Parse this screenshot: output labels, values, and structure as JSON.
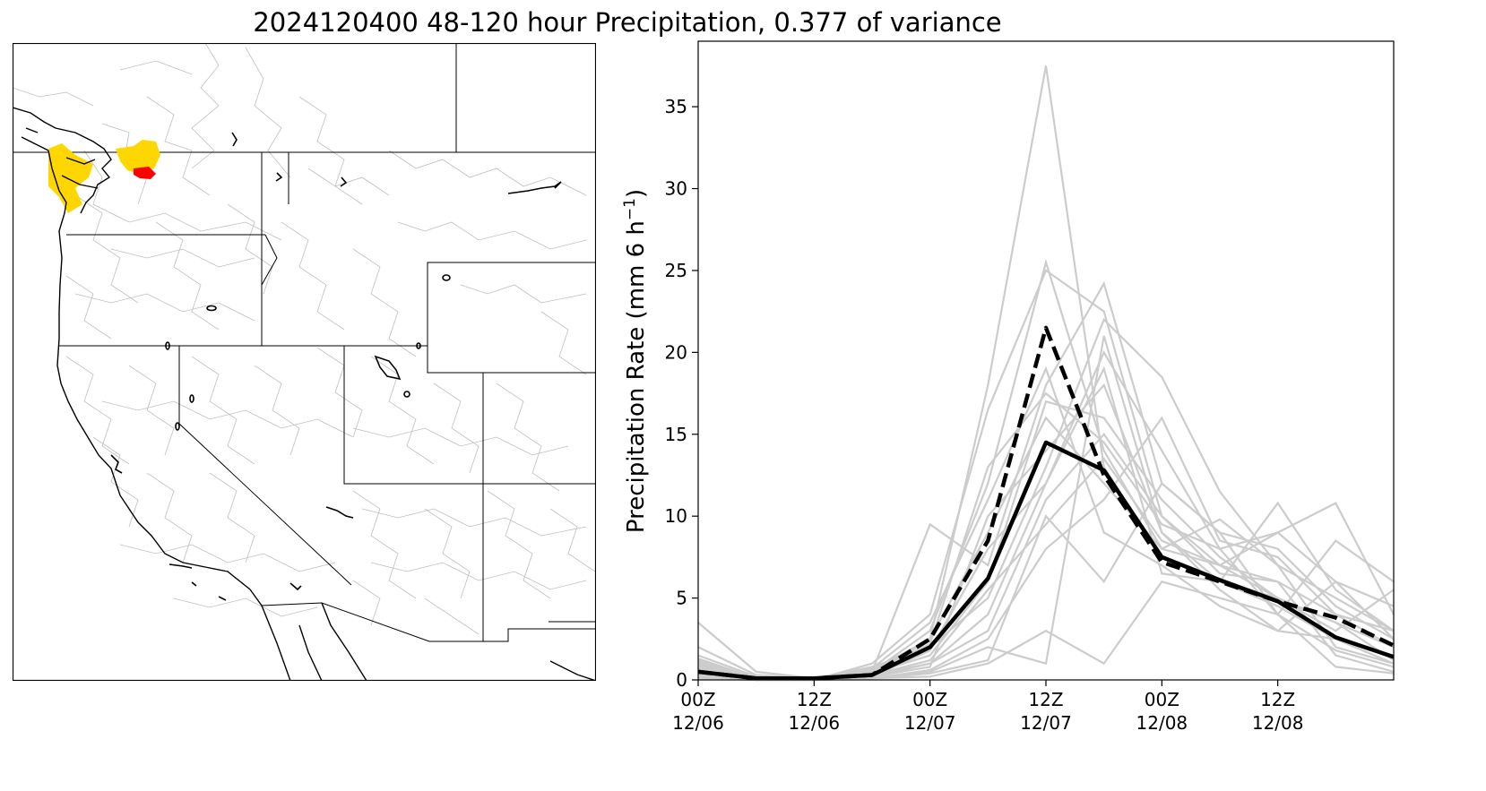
{
  "title": "2024120400 48-120 hour Precipitation, 0.377 of variance",
  "colors": {
    "highlight_yellow": "#ffd700",
    "highlight_red": "#ff0000",
    "member_gray": "#cccccc",
    "basin_gray": "#bfbfbf",
    "mean_black": "#000000"
  },
  "chart_data": {
    "type": "line",
    "title": "",
    "xlabel": "",
    "ylabel_main": "Precipitation Rate (mm 6 h",
    "ylabel_sup": "−1",
    "ylabel_close": ")",
    "ylim": [
      0,
      39
    ],
    "xlim": [
      0,
      72
    ],
    "yticks": [
      0,
      5,
      10,
      15,
      20,
      25,
      30,
      35
    ],
    "xticks": [
      {
        "x": 0,
        "line1": "00Z",
        "line2": "12/06"
      },
      {
        "x": 12,
        "line1": "12Z",
        "line2": "12/06"
      },
      {
        "x": 24,
        "line1": "00Z",
        "line2": "12/07"
      },
      {
        "x": 36,
        "line1": "12Z",
        "line2": "12/07"
      },
      {
        "x": 48,
        "line1": "00Z",
        "line2": "12/08"
      },
      {
        "x": 60,
        "line1": "12Z",
        "line2": "12/08"
      }
    ],
    "x": [
      0,
      6,
      12,
      18,
      24,
      30,
      36,
      42,
      48,
      54,
      60,
      66,
      72
    ],
    "series": [
      {
        "style": "solid",
        "values": [
          0.5,
          0.1,
          0.1,
          0.3,
          2.0,
          6.2,
          14.5,
          12.8,
          7.5,
          6.1,
          4.8,
          2.6,
          1.4
        ]
      },
      {
        "style": "dashed",
        "values": [
          0.5,
          0.1,
          0.1,
          0.3,
          2.5,
          8.5,
          21.5,
          12.5,
          7.2,
          6.0,
          4.8,
          3.8,
          2.1
        ]
      }
    ],
    "members": [
      [
        3.5,
        0.5,
        0.1,
        0.3,
        2.5,
        18.0,
        37.5,
        13.0,
        7.5,
        6.0,
        4.5,
        2.5,
        1.5
      ],
      [
        1.2,
        0.1,
        0.1,
        0.5,
        3.0,
        12.0,
        25.5,
        14.0,
        8.0,
        7.0,
        5.0,
        3.5,
        2.0
      ],
      [
        0.8,
        0.1,
        0.0,
        1.0,
        4.0,
        16.5,
        25.0,
        22.5,
        10.0,
        6.5,
        6.0,
        4.0,
        3.0
      ],
      [
        1.5,
        0.2,
        0.0,
        0.5,
        9.5,
        7.0,
        18.0,
        24.2,
        12.0,
        9.0,
        8.0,
        4.5,
        2.5
      ],
      [
        0.6,
        0.0,
        0.1,
        0.8,
        2.0,
        5.0,
        13.0,
        22.0,
        18.5,
        11.5,
        7.0,
        5.0,
        3.0
      ],
      [
        0.4,
        0.1,
        0.0,
        0.2,
        1.0,
        4.0,
        12.0,
        20.0,
        14.0,
        8.0,
        9.0,
        6.0,
        4.5
      ],
      [
        2.0,
        0.3,
        0.1,
        0.1,
        0.5,
        2.0,
        1.0,
        21.0,
        9.0,
        6.0,
        10.8,
        5.5,
        3.0
      ],
      [
        0.3,
        0.0,
        0.0,
        0.1,
        0.2,
        1.0,
        3.0,
        1.0,
        6.0,
        5.0,
        4.0,
        8.5,
        6.0
      ],
      [
        1.0,
        0.0,
        0.1,
        0.4,
        1.5,
        6.0,
        17.0,
        16.0,
        11.0,
        7.5,
        5.0,
        3.0,
        5.5
      ],
      [
        0.5,
        0.1,
        0.0,
        0.6,
        2.5,
        9.0,
        16.0,
        12.0,
        8.0,
        9.8,
        7.0,
        2.0,
        1.0
      ],
      [
        0.2,
        0.0,
        0.0,
        0.3,
        1.0,
        3.0,
        11.0,
        15.0,
        10.0,
        7.0,
        6.0,
        1.5,
        0.5
      ],
      [
        0.9,
        0.2,
        0.1,
        0.2,
        0.8,
        10.0,
        14.0,
        18.0,
        9.0,
        5.5,
        3.0,
        2.5,
        1.0
      ],
      [
        0.1,
        0.0,
        0.0,
        0.1,
        0.4,
        1.2,
        10.0,
        6.0,
        12.0,
        9.0,
        4.0,
        0.8,
        0.4
      ],
      [
        1.1,
        0.1,
        0.0,
        0.7,
        3.5,
        11.0,
        19.0,
        9.0,
        7.0,
        4.5,
        3.0,
        6.0,
        2.5
      ],
      [
        0.7,
        0.0,
        0.1,
        0.2,
        1.8,
        8.0,
        12.0,
        19.0,
        6.5,
        6.0,
        5.0,
        3.5,
        1.2
      ],
      [
        0.3,
        0.0,
        0.0,
        0.1,
        0.6,
        2.5,
        8.0,
        11.0,
        16.0,
        8.5,
        7.5,
        4.0,
        2.0
      ],
      [
        1.3,
        0.1,
        0.1,
        0.5,
        2.2,
        13.0,
        17.5,
        14.5,
        9.5,
        8.0,
        4.0,
        1.8,
        0.8
      ],
      [
        0.6,
        0.1,
        0.0,
        0.3,
        1.2,
        5.5,
        9.5,
        13.5,
        8.5,
        7.0,
        9.0,
        10.8,
        4.0
      ]
    ]
  },
  "map": {
    "features": [
      "state-borders",
      "coastline",
      "lakes",
      "basin-outlines"
    ],
    "highlight_regions": [
      "yellow-basins",
      "red-basin"
    ]
  }
}
